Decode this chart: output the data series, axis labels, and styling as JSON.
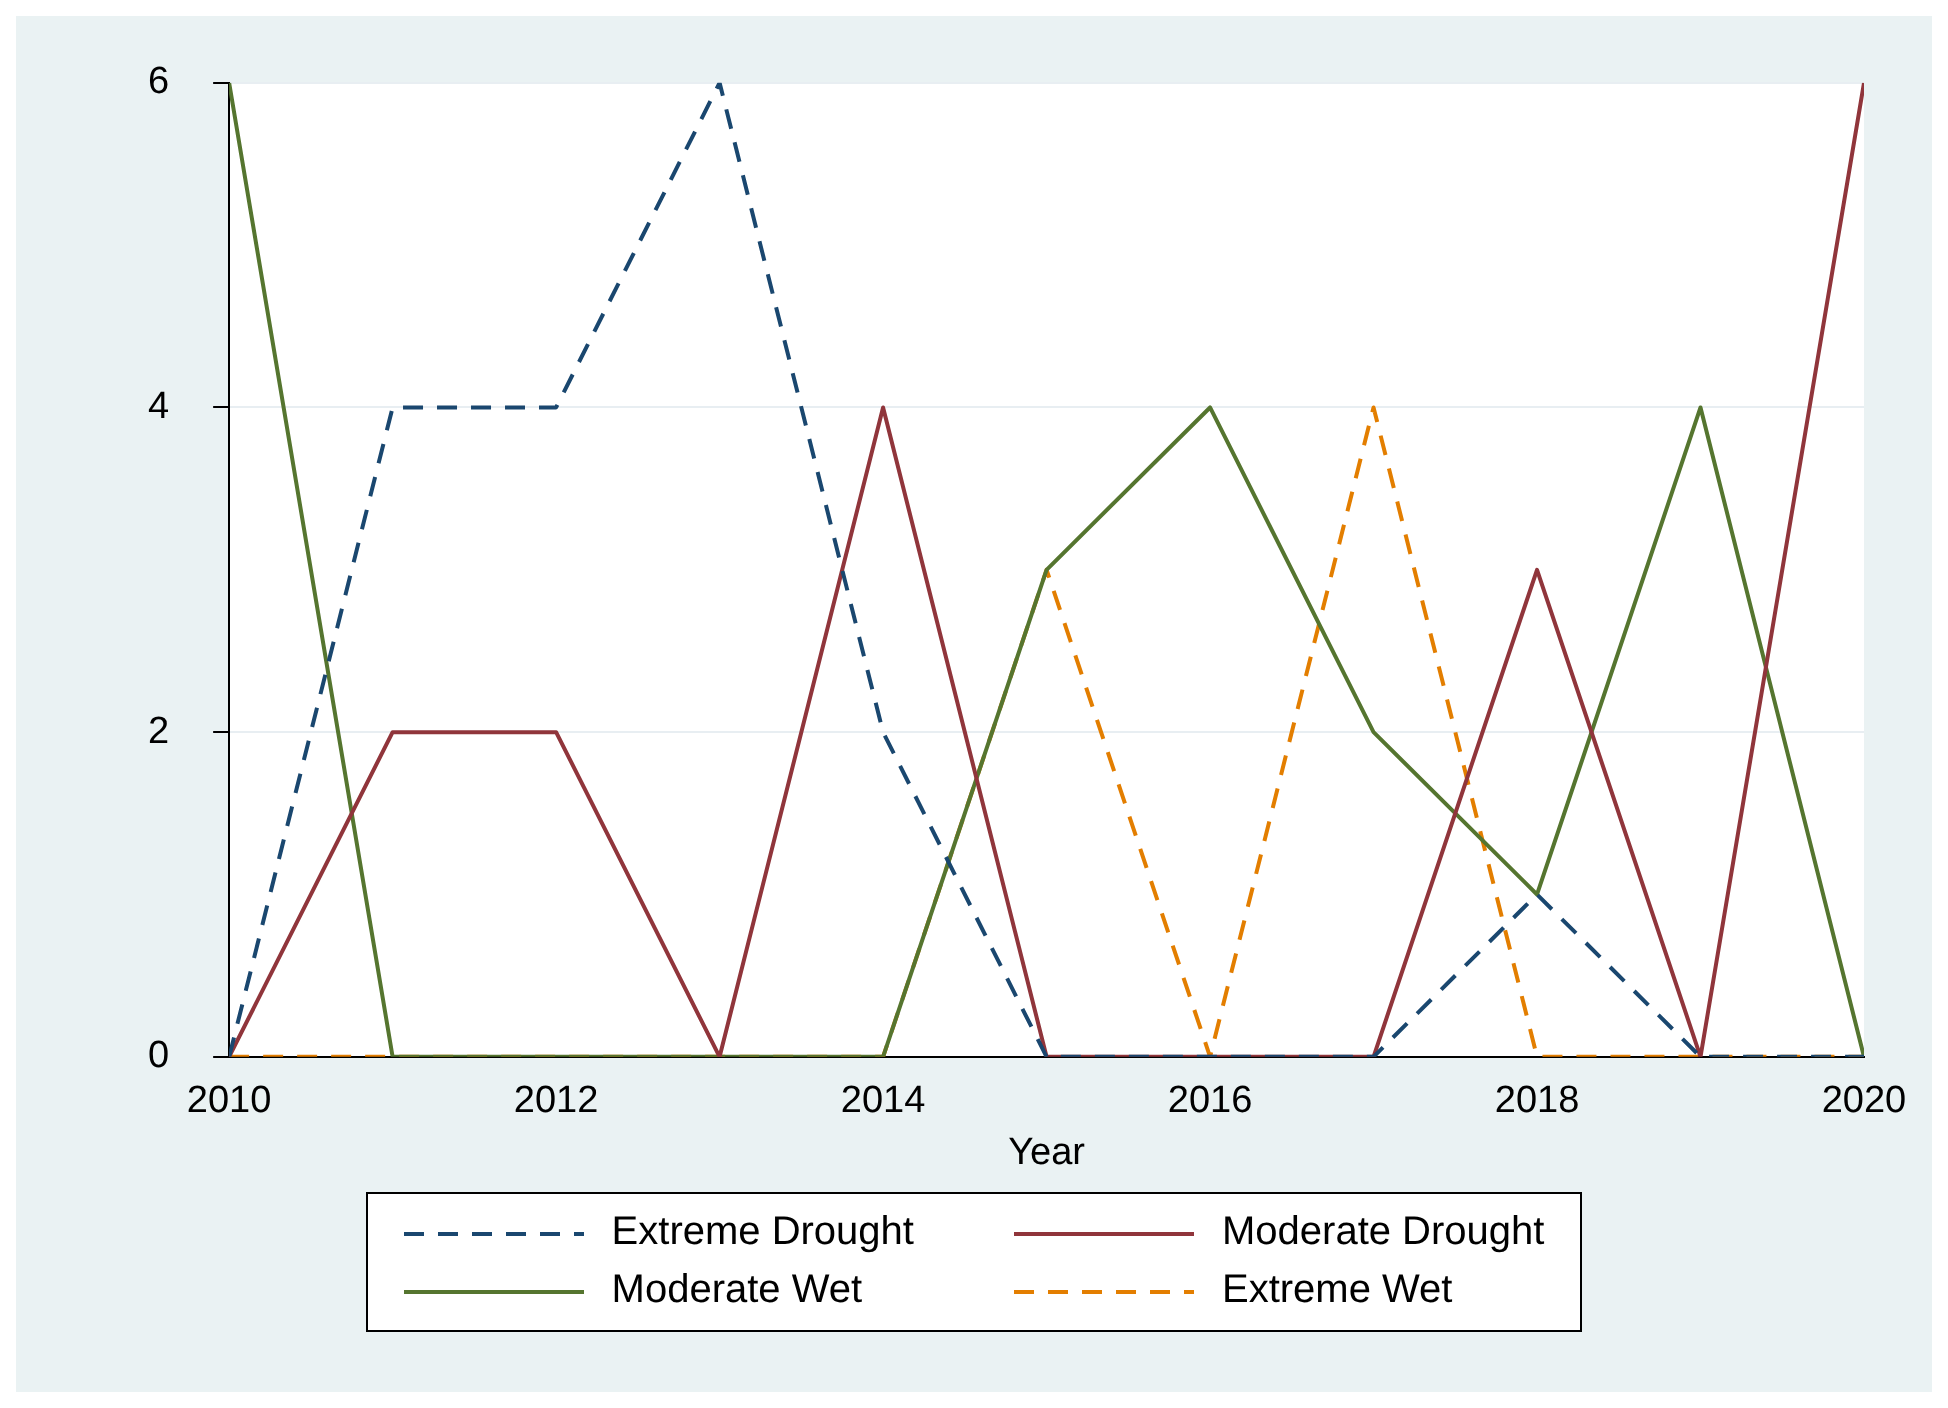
{
  "chart_data": {
    "type": "line",
    "xlabel": "Year",
    "x": [
      2010,
      2011,
      2012,
      2013,
      2014,
      2015,
      2016,
      2017,
      2018,
      2019,
      2020
    ],
    "xlim": [
      2010,
      2020
    ],
    "xticks": [
      2010,
      2012,
      2014,
      2016,
      2018,
      2020
    ],
    "ylim": [
      0,
      6
    ],
    "yticks": [
      0,
      2,
      4,
      6
    ],
    "grid": "y",
    "legend": "bottom",
    "marker": "none",
    "series": [
      {
        "name": "Extreme Drought",
        "color": "#1a476f",
        "line_style": "dashed",
        "values": [
          0,
          4,
          4,
          6,
          2,
          0,
          0,
          0,
          1,
          0,
          0
        ]
      },
      {
        "name": "Moderate Drought",
        "color": "#90353b",
        "line_style": "solid",
        "values": [
          0,
          2,
          2,
          0,
          4,
          0,
          0,
          0,
          3,
          0,
          6
        ]
      },
      {
        "name": "Moderate Wet",
        "color": "#55752f",
        "line_style": "solid",
        "values": [
          6,
          0,
          0,
          0,
          0,
          3,
          4,
          2,
          1,
          4,
          0
        ]
      },
      {
        "name": "Extreme Wet",
        "color": "#e37e00",
        "line_style": "dashed",
        "values": [
          0,
          0,
          0,
          0,
          0,
          3,
          0,
          4,
          0,
          0,
          0
        ]
      }
    ]
  }
}
